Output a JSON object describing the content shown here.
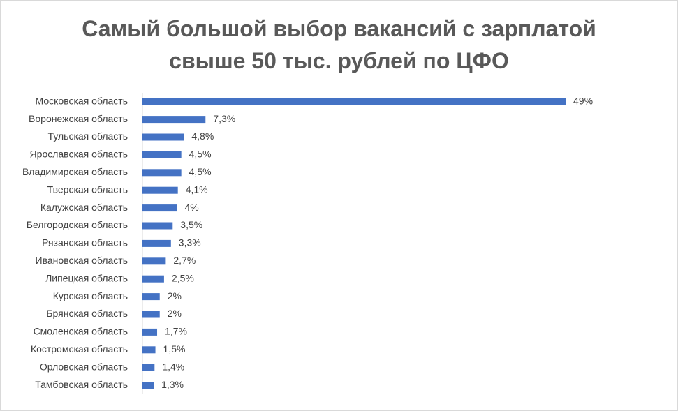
{
  "chart_data": {
    "type": "bar",
    "orientation": "horizontal",
    "title_lines": [
      "Самый большой выбор вакансий с зарплатой",
      "свыше 50 тыс. рублей по ЦФО"
    ],
    "categories": [
      "Московская область",
      "Воронежская область",
      "Тульская область",
      "Ярославская область",
      "Владимирская область",
      "Тверская область",
      "Калужская область",
      "Белгородская область",
      "Рязанская область",
      "Ивановская область",
      "Липецкая область",
      "Курская область",
      "Брянская область",
      "Смоленская область",
      "Костромская область",
      "Орловская область",
      "Тамбовская область"
    ],
    "values": [
      49,
      7.3,
      4.8,
      4.5,
      4.5,
      4.1,
      4,
      3.5,
      3.3,
      2.7,
      2.5,
      2,
      2,
      1.7,
      1.5,
      1.4,
      1.3
    ],
    "data_labels": [
      "49%",
      "7,3%",
      "4,8%",
      "4,5%",
      "4,5%",
      "4,1%",
      "4%",
      "3,5%",
      "3,3%",
      "2,7%",
      "2,5%",
      "2%",
      "2%",
      "1,7%",
      "1,5%",
      "1,4%",
      "1,3%"
    ],
    "xlim": [
      0,
      49
    ],
    "grid": false,
    "legend": "none",
    "bar_color": "#4472c4",
    "axis_color": "#d9d9d9"
  }
}
